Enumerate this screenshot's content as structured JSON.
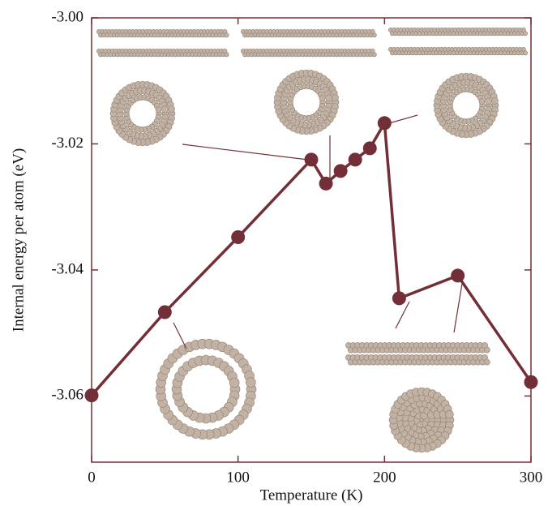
{
  "chart_data": {
    "type": "line",
    "x_label": "Temperature (K)",
    "y_label": "Internal energy per atom (eV)",
    "x": [
      0,
      50,
      100,
      150,
      160,
      170,
      180,
      190,
      200,
      210,
      250,
      300
    ],
    "series": [
      {
        "color": "#722f37",
        "values": [
          -3.0599,
          -3.0467,
          -3.0348,
          -3.0225,
          -3.0263,
          -3.0243,
          -3.0225,
          -3.0207,
          -3.0167,
          -3.0445,
          -3.0409,
          -3.0578
        ]
      }
    ],
    "xlim": [
      0,
      300
    ],
    "xticks": [
      0,
      100,
      200,
      300
    ],
    "ylim": [
      -3.0705,
      -3.0
    ],
    "yticks": [
      {
        "value": -3.0,
        "label": "-3.00"
      },
      -3.02,
      -3.04,
      -3.06
    ]
  }
}
